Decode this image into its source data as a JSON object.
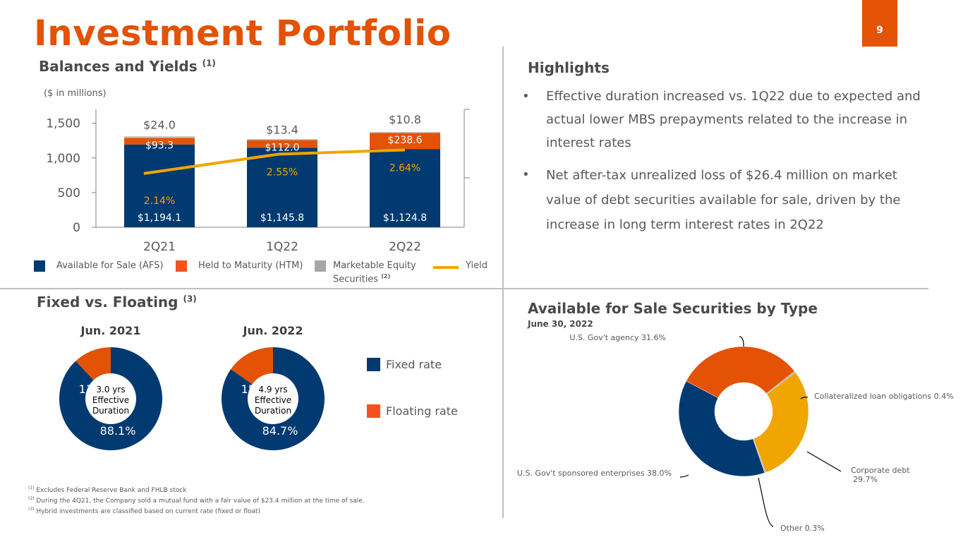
{
  "title": "Investment Portfolio",
  "page_number": "9",
  "colors": {
    "brand_orange": "#e35205",
    "afs_navy": "#003a70",
    "htm_orange": "#e35205",
    "equity_gray": "#a6a6a6",
    "yield_gold": "#f0a500",
    "corporate_gold": "#f0a500"
  },
  "balances": {
    "title": "Balances and Yields",
    "title_note": "(1)",
    "units": "($ in millions)",
    "legend": {
      "afs": "Available for Sale (AFS)",
      "htm": "Held to Maturity (HTM)",
      "equity_line1": "Marketable Equity",
      "equity_line2": "Securities",
      "equity_note": "(2)",
      "yield": "Yield"
    }
  },
  "highlights": {
    "title": "Highlights",
    "items": [
      "Effective duration increased vs. 1Q22 due to expected and actual lower MBS prepayments related to the increase in interest rates",
      "Net after-tax unrealized loss of $26.4 million on market value of debt securities available for sale, driven by the increase in long term interest rates in 2Q22"
    ]
  },
  "fixed_floating": {
    "title": "Fixed vs. Floating",
    "title_note": "(3)",
    "legend": {
      "fixed": "Fixed rate",
      "floating": "Floating rate"
    }
  },
  "afs_by_type": {
    "title": "Available for Sale Securities by Type",
    "subtitle": "June 30, 2022"
  },
  "footnotes": [
    {
      "mark": "(1)",
      "text": "Excludes Federal Reserve Bank and FHLB stock"
    },
    {
      "mark": "(2)",
      "text": "During the 4Q21, the Company sold a mutual fund with a fair value of $23.4 million at the time of sale."
    },
    {
      "mark": "(3)",
      "text": "Hybrid investments are classified based on current rate (fixed or float)"
    }
  ],
  "chart_data": [
    {
      "type": "bar",
      "title": "Balances and Yields",
      "stacked": true,
      "categories": [
        "2Q21",
        "1Q22",
        "2Q22"
      ],
      "series": [
        {
          "name": "Available for Sale (AFS)",
          "values": [
            1194.1,
            1145.8,
            1124.8
          ],
          "labels": [
            "$1,194.1",
            "$1,145.8",
            "$1,124.8"
          ]
        },
        {
          "name": "Held to Maturity (HTM)",
          "values": [
            93.3,
            112.0,
            238.6
          ],
          "labels": [
            "$93.3",
            "$112.0",
            "$238.6"
          ]
        },
        {
          "name": "Marketable Equity Securities",
          "values": [
            24.0,
            13.4,
            10.8
          ],
          "labels": [
            "$24.0",
            "$13.4",
            "$10.8"
          ]
        }
      ],
      "line_series": {
        "name": "Yield",
        "values": [
          2.14,
          2.55,
          2.64
        ],
        "labels": [
          "2.14%",
          "2.55%",
          "2.64%"
        ],
        "axis": "secondary"
      },
      "ylabel": "($ in millions)",
      "ylim": [
        0,
        1700
      ],
      "yticks": [
        0,
        500,
        1000,
        1500
      ],
      "ytick_labels": [
        "0",
        "500",
        "1,000",
        "1,500"
      ],
      "y2lim": [
        1.0,
        3.5
      ],
      "legend_position": "bottom"
    },
    {
      "type": "pie",
      "title": "Jun. 2021",
      "labels": [
        "Fixed rate",
        "Floating rate"
      ],
      "values": [
        88.1,
        11.9
      ],
      "value_labels": [
        "88.1%",
        "11.9%"
      ],
      "center_text": [
        "3.0 yrs",
        "Effective",
        "Duration"
      ],
      "donut": true
    },
    {
      "type": "pie",
      "title": "Jun. 2022",
      "labels": [
        "Fixed rate",
        "Floating rate"
      ],
      "values": [
        84.7,
        15.3
      ],
      "value_labels": [
        "84.7%",
        "15.3%"
      ],
      "center_text": [
        "4.9 yrs",
        "Effective",
        "Duration"
      ],
      "donut": true
    },
    {
      "type": "pie",
      "title": "Available for Sale Securities by Type",
      "subtitle": "June 30, 2022",
      "donut": true,
      "labels": [
        "U.S. Gov't agency",
        "Collateralized loan obligations",
        "Corporate debt",
        "Other",
        "U.S. Gov't sponsored enterprises"
      ],
      "values": [
        31.6,
        0.4,
        29.7,
        0.3,
        38.0
      ],
      "value_labels": [
        "31.6%",
        "0.4%",
        "29.7%",
        "0.3%",
        "38.0%"
      ],
      "colors": [
        "#e35205",
        "#a6a6a6",
        "#f0a500",
        "#a6a6a6",
        "#003a70"
      ]
    }
  ]
}
